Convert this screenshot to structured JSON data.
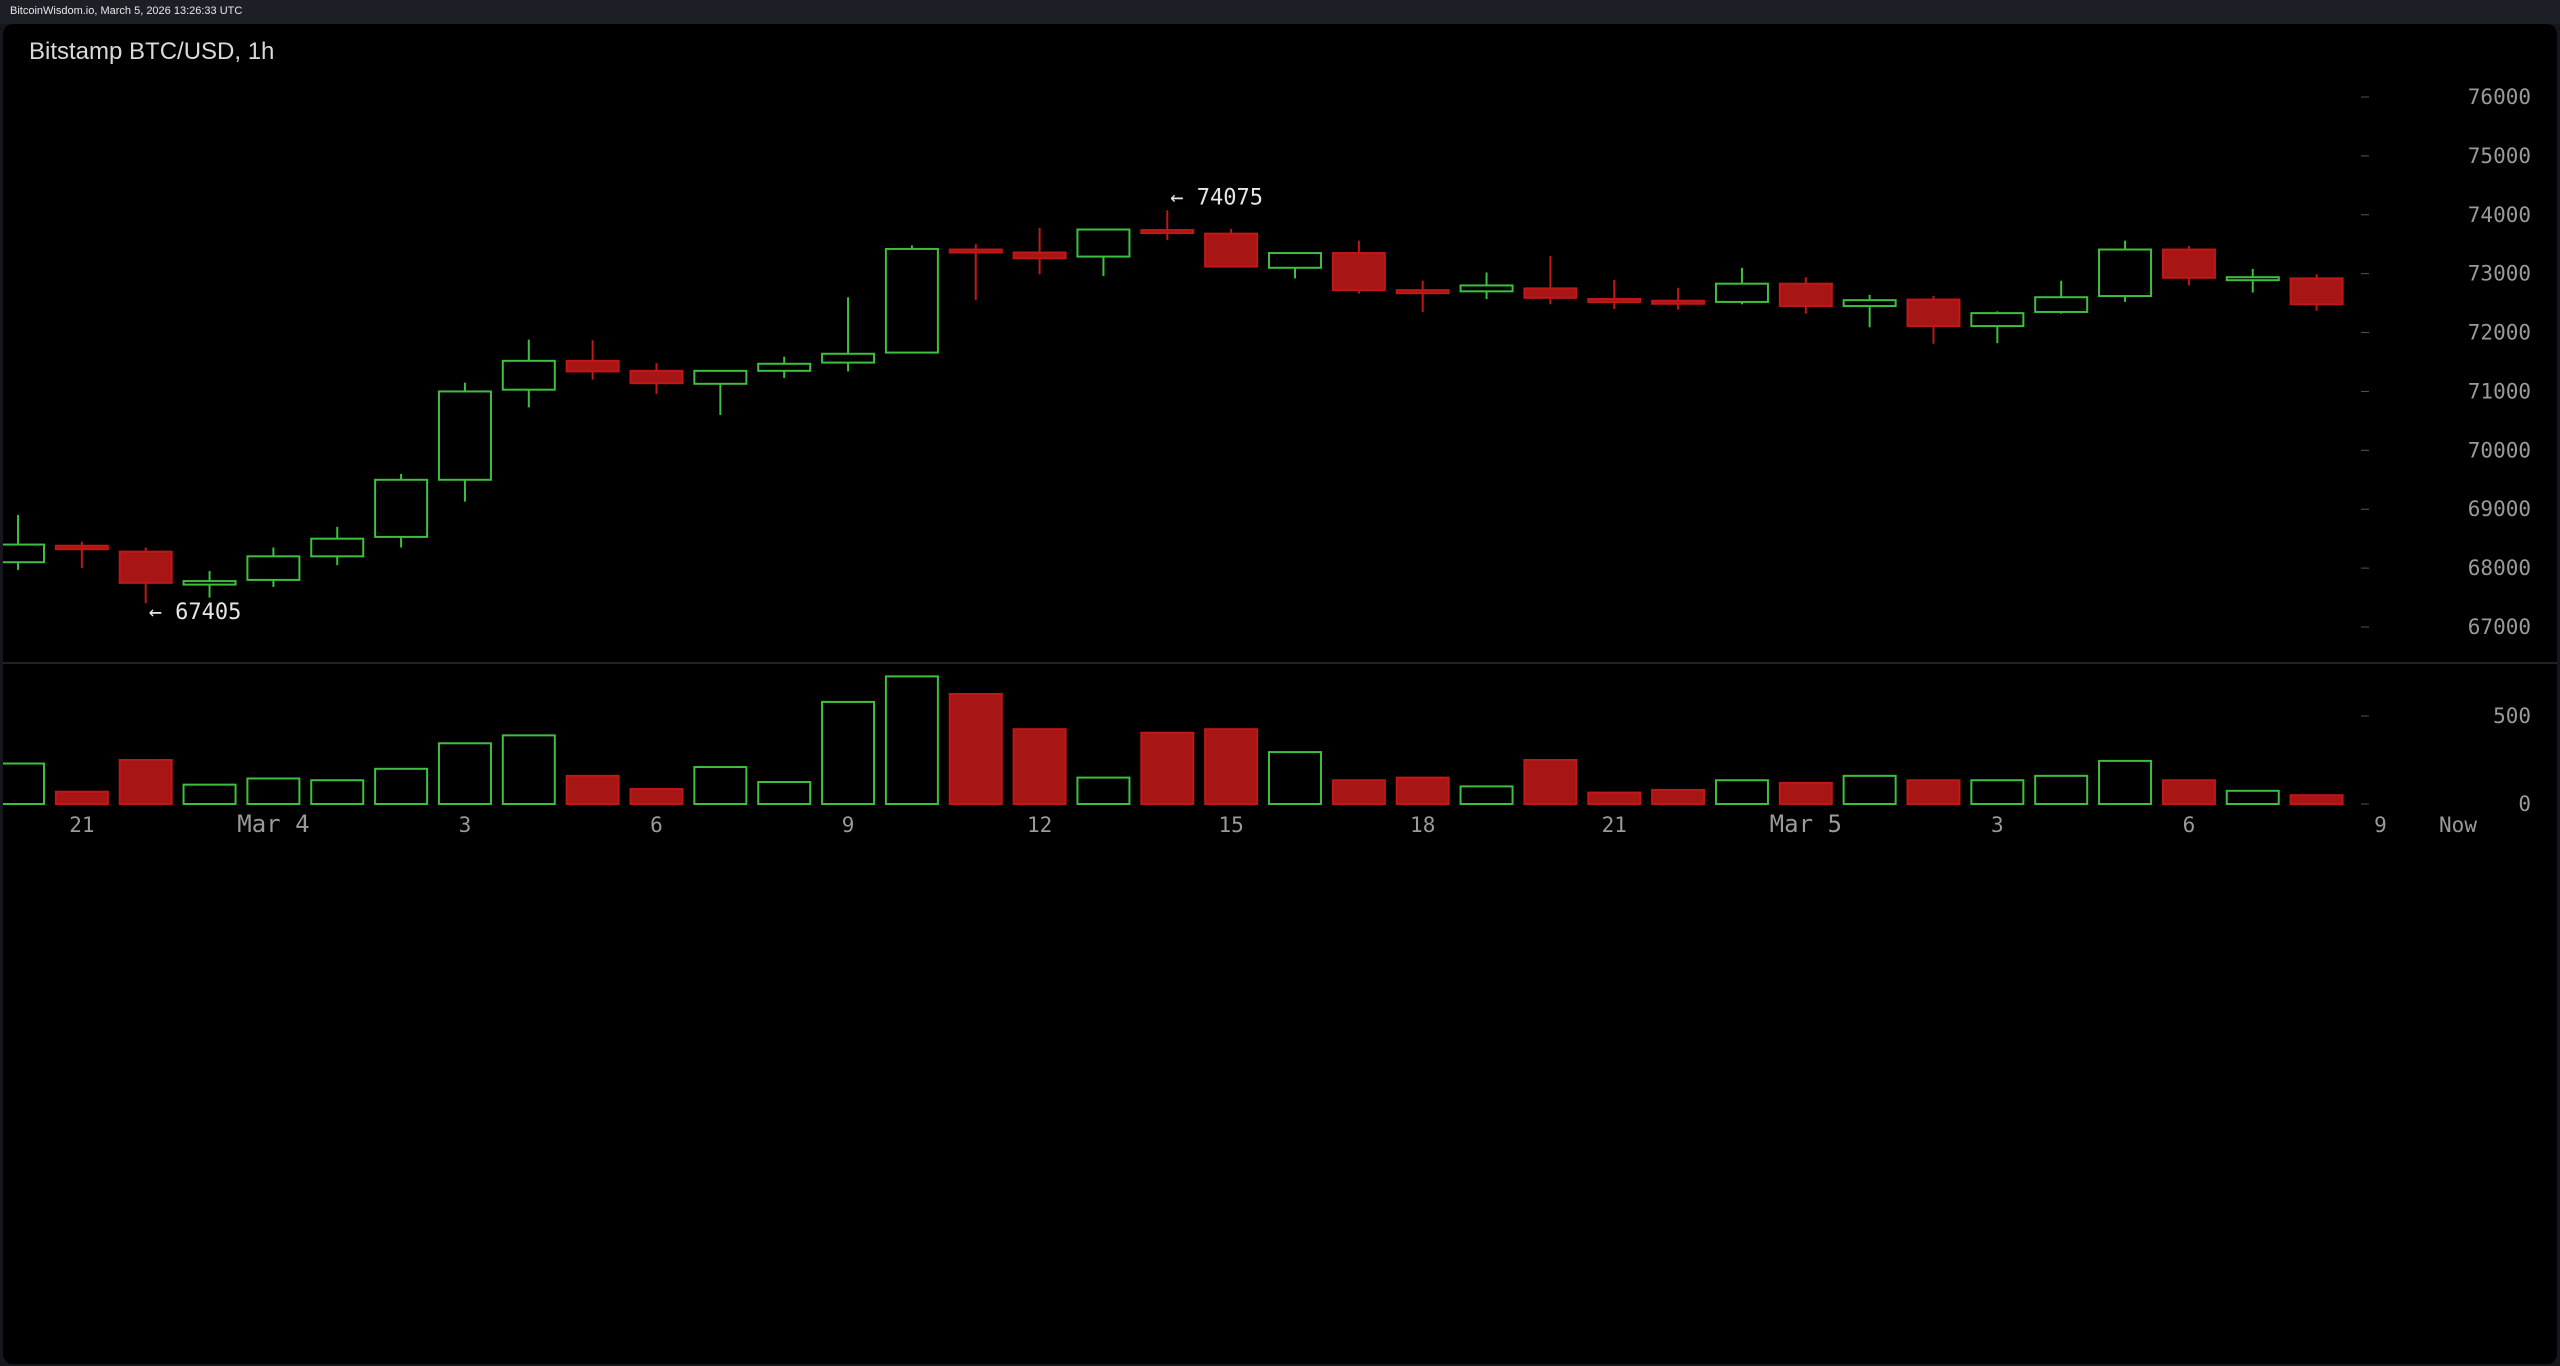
{
  "header": {
    "timestamp": "BitcoinWisdom.io, March 5, 2026 13:26:33 UTC"
  },
  "chart": {
    "title": "Bitstamp BTC/USD, 1h"
  },
  "colors": {
    "up": "#3fbf3f",
    "down": "#a81515",
    "down_fill": "#a81515",
    "grid_tick": "#555555",
    "axis_text": "#9a9a9a",
    "divider": "#444444"
  },
  "chart_data": [
    {
      "type": "candlestick",
      "title": "Bitstamp BTC/USD, 1h",
      "y_ticks": [
        67000,
        68000,
        69000,
        70000,
        71000,
        72000,
        73000,
        74000,
        75000,
        76000
      ],
      "ylim": [
        66000,
        77000
      ],
      "x_tick_labels": [
        {
          "label": "21",
          "index": 1
        },
        {
          "label": "Mar 4",
          "index": 4
        },
        {
          "label": "3",
          "index": 7
        },
        {
          "label": "6",
          "index": 10
        },
        {
          "label": "9",
          "index": 13
        },
        {
          "label": "12",
          "index": 16
        },
        {
          "label": "15",
          "index": 19
        },
        {
          "label": "18",
          "index": 22
        },
        {
          "label": "21",
          "index": 25
        },
        {
          "label": "Mar 5",
          "index": 28
        },
        {
          "label": "3",
          "index": 31
        },
        {
          "label": "6",
          "index": 34
        },
        {
          "label": "9",
          "index": 37
        },
        {
          "label": "Now",
          "index": 38
        }
      ],
      "annotations": [
        {
          "text": "← 74075",
          "value": 74075,
          "index": 18
        },
        {
          "text": "← 67405",
          "value": 67405,
          "index": 2
        }
      ],
      "candles": [
        {
          "o": 68100,
          "h": 68900,
          "l": 67970,
          "c": 68400
        },
        {
          "o": 68380,
          "h": 68450,
          "l": 68000,
          "c": 68320
        },
        {
          "o": 68280,
          "h": 68350,
          "l": 67405,
          "c": 67750
        },
        {
          "o": 67720,
          "h": 67950,
          "l": 67500,
          "c": 67780
        },
        {
          "o": 67800,
          "h": 68350,
          "l": 67680,
          "c": 68200
        },
        {
          "o": 68200,
          "h": 68700,
          "l": 68050,
          "c": 68500
        },
        {
          "o": 68530,
          "h": 69600,
          "l": 68350,
          "c": 69500
        },
        {
          "o": 69500,
          "h": 71150,
          "l": 69130,
          "c": 71000
        },
        {
          "o": 71030,
          "h": 71880,
          "l": 70730,
          "c": 71520
        },
        {
          "o": 71520,
          "h": 71870,
          "l": 71200,
          "c": 71340
        },
        {
          "o": 71350,
          "h": 71480,
          "l": 70960,
          "c": 71140
        },
        {
          "o": 71130,
          "h": 71330,
          "l": 70600,
          "c": 71350
        },
        {
          "o": 71350,
          "h": 71590,
          "l": 71230,
          "c": 71470
        },
        {
          "o": 71490,
          "h": 72600,
          "l": 71340,
          "c": 71640
        },
        {
          "o": 71660,
          "h": 73480,
          "l": 71650,
          "c": 73420
        },
        {
          "o": 73410,
          "h": 73500,
          "l": 72550,
          "c": 73360
        },
        {
          "o": 73360,
          "h": 73780,
          "l": 72990,
          "c": 73260
        },
        {
          "o": 73290,
          "h": 73750,
          "l": 72960,
          "c": 73750
        },
        {
          "o": 73740,
          "h": 74075,
          "l": 73570,
          "c": 73710
        },
        {
          "o": 73680,
          "h": 73760,
          "l": 73120,
          "c": 73120
        },
        {
          "o": 73100,
          "h": 73360,
          "l": 72920,
          "c": 73350
        },
        {
          "o": 73350,
          "h": 73560,
          "l": 72660,
          "c": 72720
        },
        {
          "o": 72720,
          "h": 72880,
          "l": 72350,
          "c": 72690
        },
        {
          "o": 72700,
          "h": 73020,
          "l": 72570,
          "c": 72800
        },
        {
          "o": 72750,
          "h": 73300,
          "l": 72480,
          "c": 72590
        },
        {
          "o": 72570,
          "h": 72890,
          "l": 72400,
          "c": 72540
        },
        {
          "o": 72540,
          "h": 72760,
          "l": 72390,
          "c": 72510
        },
        {
          "o": 72520,
          "h": 73100,
          "l": 72480,
          "c": 72830
        },
        {
          "o": 72830,
          "h": 72940,
          "l": 72320,
          "c": 72450
        },
        {
          "o": 72450,
          "h": 72640,
          "l": 72090,
          "c": 72550
        },
        {
          "o": 72560,
          "h": 72620,
          "l": 71810,
          "c": 72110
        },
        {
          "o": 72110,
          "h": 72360,
          "l": 71820,
          "c": 72330
        },
        {
          "o": 72350,
          "h": 72880,
          "l": 72320,
          "c": 72600
        },
        {
          "o": 72620,
          "h": 73560,
          "l": 72520,
          "c": 73410
        },
        {
          "o": 73410,
          "h": 73470,
          "l": 72800,
          "c": 72930
        },
        {
          "o": 72920,
          "h": 73080,
          "l": 72680,
          "c": 72940
        },
        {
          "o": 72920,
          "h": 72990,
          "l": 72370,
          "c": 72480
        }
      ]
    },
    {
      "type": "bar",
      "title": "",
      "y_ticks": [
        0,
        500
      ],
      "ylim": [
        0,
        720
      ],
      "values": [
        230,
        70,
        250,
        110,
        145,
        135,
        200,
        345,
        390,
        160,
        85,
        210,
        125,
        580,
        725,
        625,
        425,
        150,
        405,
        425,
        295,
        135,
        150,
        100,
        250,
        65,
        80,
        135,
        120,
        160,
        135,
        135,
        160,
        245,
        135,
        75,
        50
      ],
      "directions": [
        "up",
        "down",
        "down",
        "up",
        "up",
        "up",
        "up",
        "up",
        "up",
        "down",
        "down",
        "up",
        "up",
        "up",
        "up",
        "down",
        "down",
        "up",
        "down",
        "down",
        "up",
        "down",
        "down",
        "up",
        "down",
        "down",
        "down",
        "up",
        "down",
        "up",
        "down",
        "up",
        "up",
        "up",
        "down",
        "up",
        "down"
      ]
    }
  ]
}
